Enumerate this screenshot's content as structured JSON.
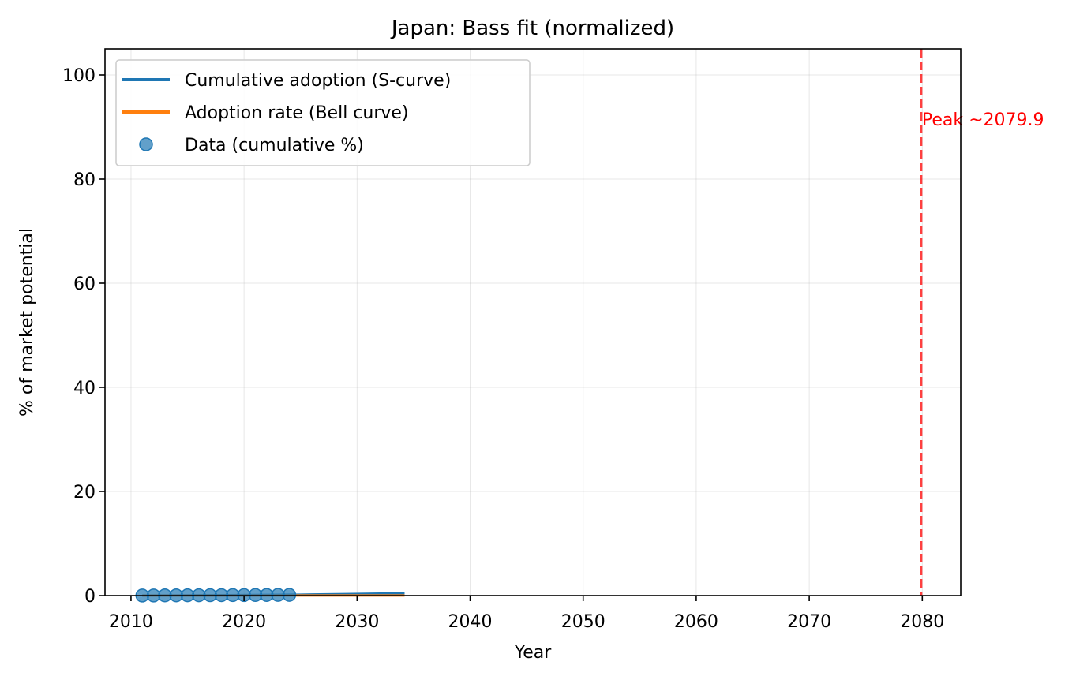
{
  "chart_data": {
    "type": "line",
    "title": "Japan: Bass fit (normalized)",
    "xlabel": "Year",
    "ylabel": "% of market potential",
    "xlim": [
      2007.7,
      2083.4
    ],
    "ylim": [
      0,
      105
    ],
    "xticks": [
      2010,
      2020,
      2030,
      2040,
      2050,
      2060,
      2070,
      2080
    ],
    "yticks": [
      0,
      20,
      40,
      60,
      80,
      100
    ],
    "grid": true,
    "legend_position": "top-left",
    "series": [
      {
        "name": "Cumulative adoption (S-curve)",
        "kind": "line",
        "color": "#1f77b4",
        "x": [
          2011,
          2014,
          2017,
          2020,
          2023,
          2026,
          2029,
          2032,
          2034.2
        ],
        "y": [
          0.02,
          0.04,
          0.06,
          0.09,
          0.13,
          0.2,
          0.28,
          0.38,
          0.45
        ]
      },
      {
        "name": "Adoption rate (Bell curve)",
        "kind": "line",
        "color": "#ff7f0e",
        "x": [
          2011,
          2014,
          2017,
          2020,
          2023,
          2026,
          2029,
          2032,
          2034.2
        ],
        "y": [
          0.0,
          0.0,
          0.0,
          0.0,
          0.01,
          0.01,
          0.01,
          0.01,
          0.01
        ]
      },
      {
        "name": "Data (cumulative %)",
        "kind": "scatter",
        "color": "#1f77b4",
        "x": [
          2011,
          2012,
          2013,
          2014,
          2015,
          2016,
          2017,
          2018,
          2019,
          2020,
          2021,
          2022,
          2023,
          2024
        ],
        "y": [
          0.01,
          0.02,
          0.03,
          0.04,
          0.05,
          0.06,
          0.07,
          0.08,
          0.09,
          0.1,
          0.11,
          0.12,
          0.13,
          0.14
        ]
      }
    ],
    "annotations": [
      {
        "type": "vline",
        "x": 2079.9,
        "color": "#ff0000",
        "style": "dashed",
        "label": "Peak ~2079.9"
      }
    ]
  }
}
